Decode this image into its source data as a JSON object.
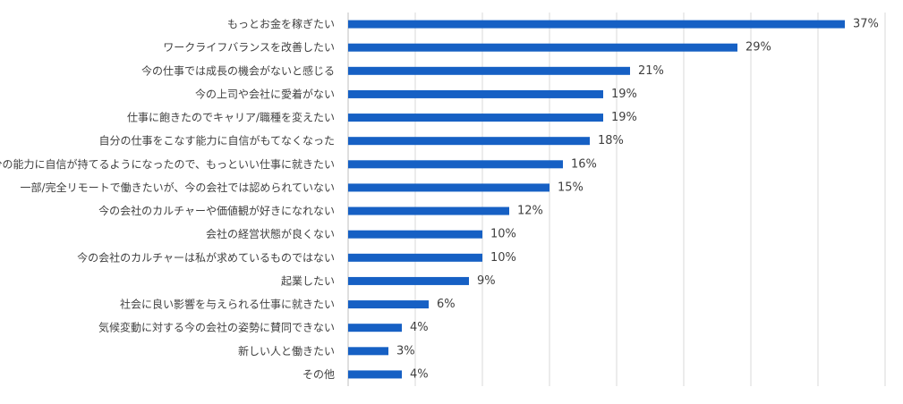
{
  "chart_data": {
    "type": "bar",
    "orientation": "horizontal",
    "categories": [
      "もっとお金を稼ぎたい",
      "ワークライフバランスを改善したい",
      "今の仕事では成長の機会がないと感じる",
      "今の上司や会社に愛着がない",
      "仕事に飽きたのでキャリア/職種を変えたい",
      "自分の仕事をこなす能力に自信がもてなくなった",
      "自分の能力に自信が持てるようになったので、もっといい仕事に就きたい",
      "一部/完全リモートで働きたいが、今の会社では認められていない",
      "今の会社のカルチャーや価値観が好きになれない",
      "会社の経営状態が良くない",
      "今の会社のカルチャーは私が求めているものではない",
      "起業したい",
      "社会に良い影響を与えられる仕事に就きたい",
      "気候変動に対する今の会社の姿勢に賛同できない",
      "新しい人と働きたい",
      "その他"
    ],
    "values": [
      37,
      29,
      21,
      19,
      19,
      18,
      16,
      15,
      12,
      10,
      10,
      9,
      6,
      4,
      3,
      4
    ],
    "data_labels": [
      "37%",
      "29%",
      "21%",
      "19%",
      "19%",
      "18%",
      "16%",
      "15%",
      "12%",
      "10%",
      "10%",
      "9%",
      "6%",
      "4%",
      "3%",
      "4%"
    ],
    "xlim": [
      0,
      40
    ],
    "grid": true,
    "legend": "none",
    "bar_color": "#1660C4",
    "grid_color": "#D9D9D9",
    "label_color": "#404040"
  }
}
